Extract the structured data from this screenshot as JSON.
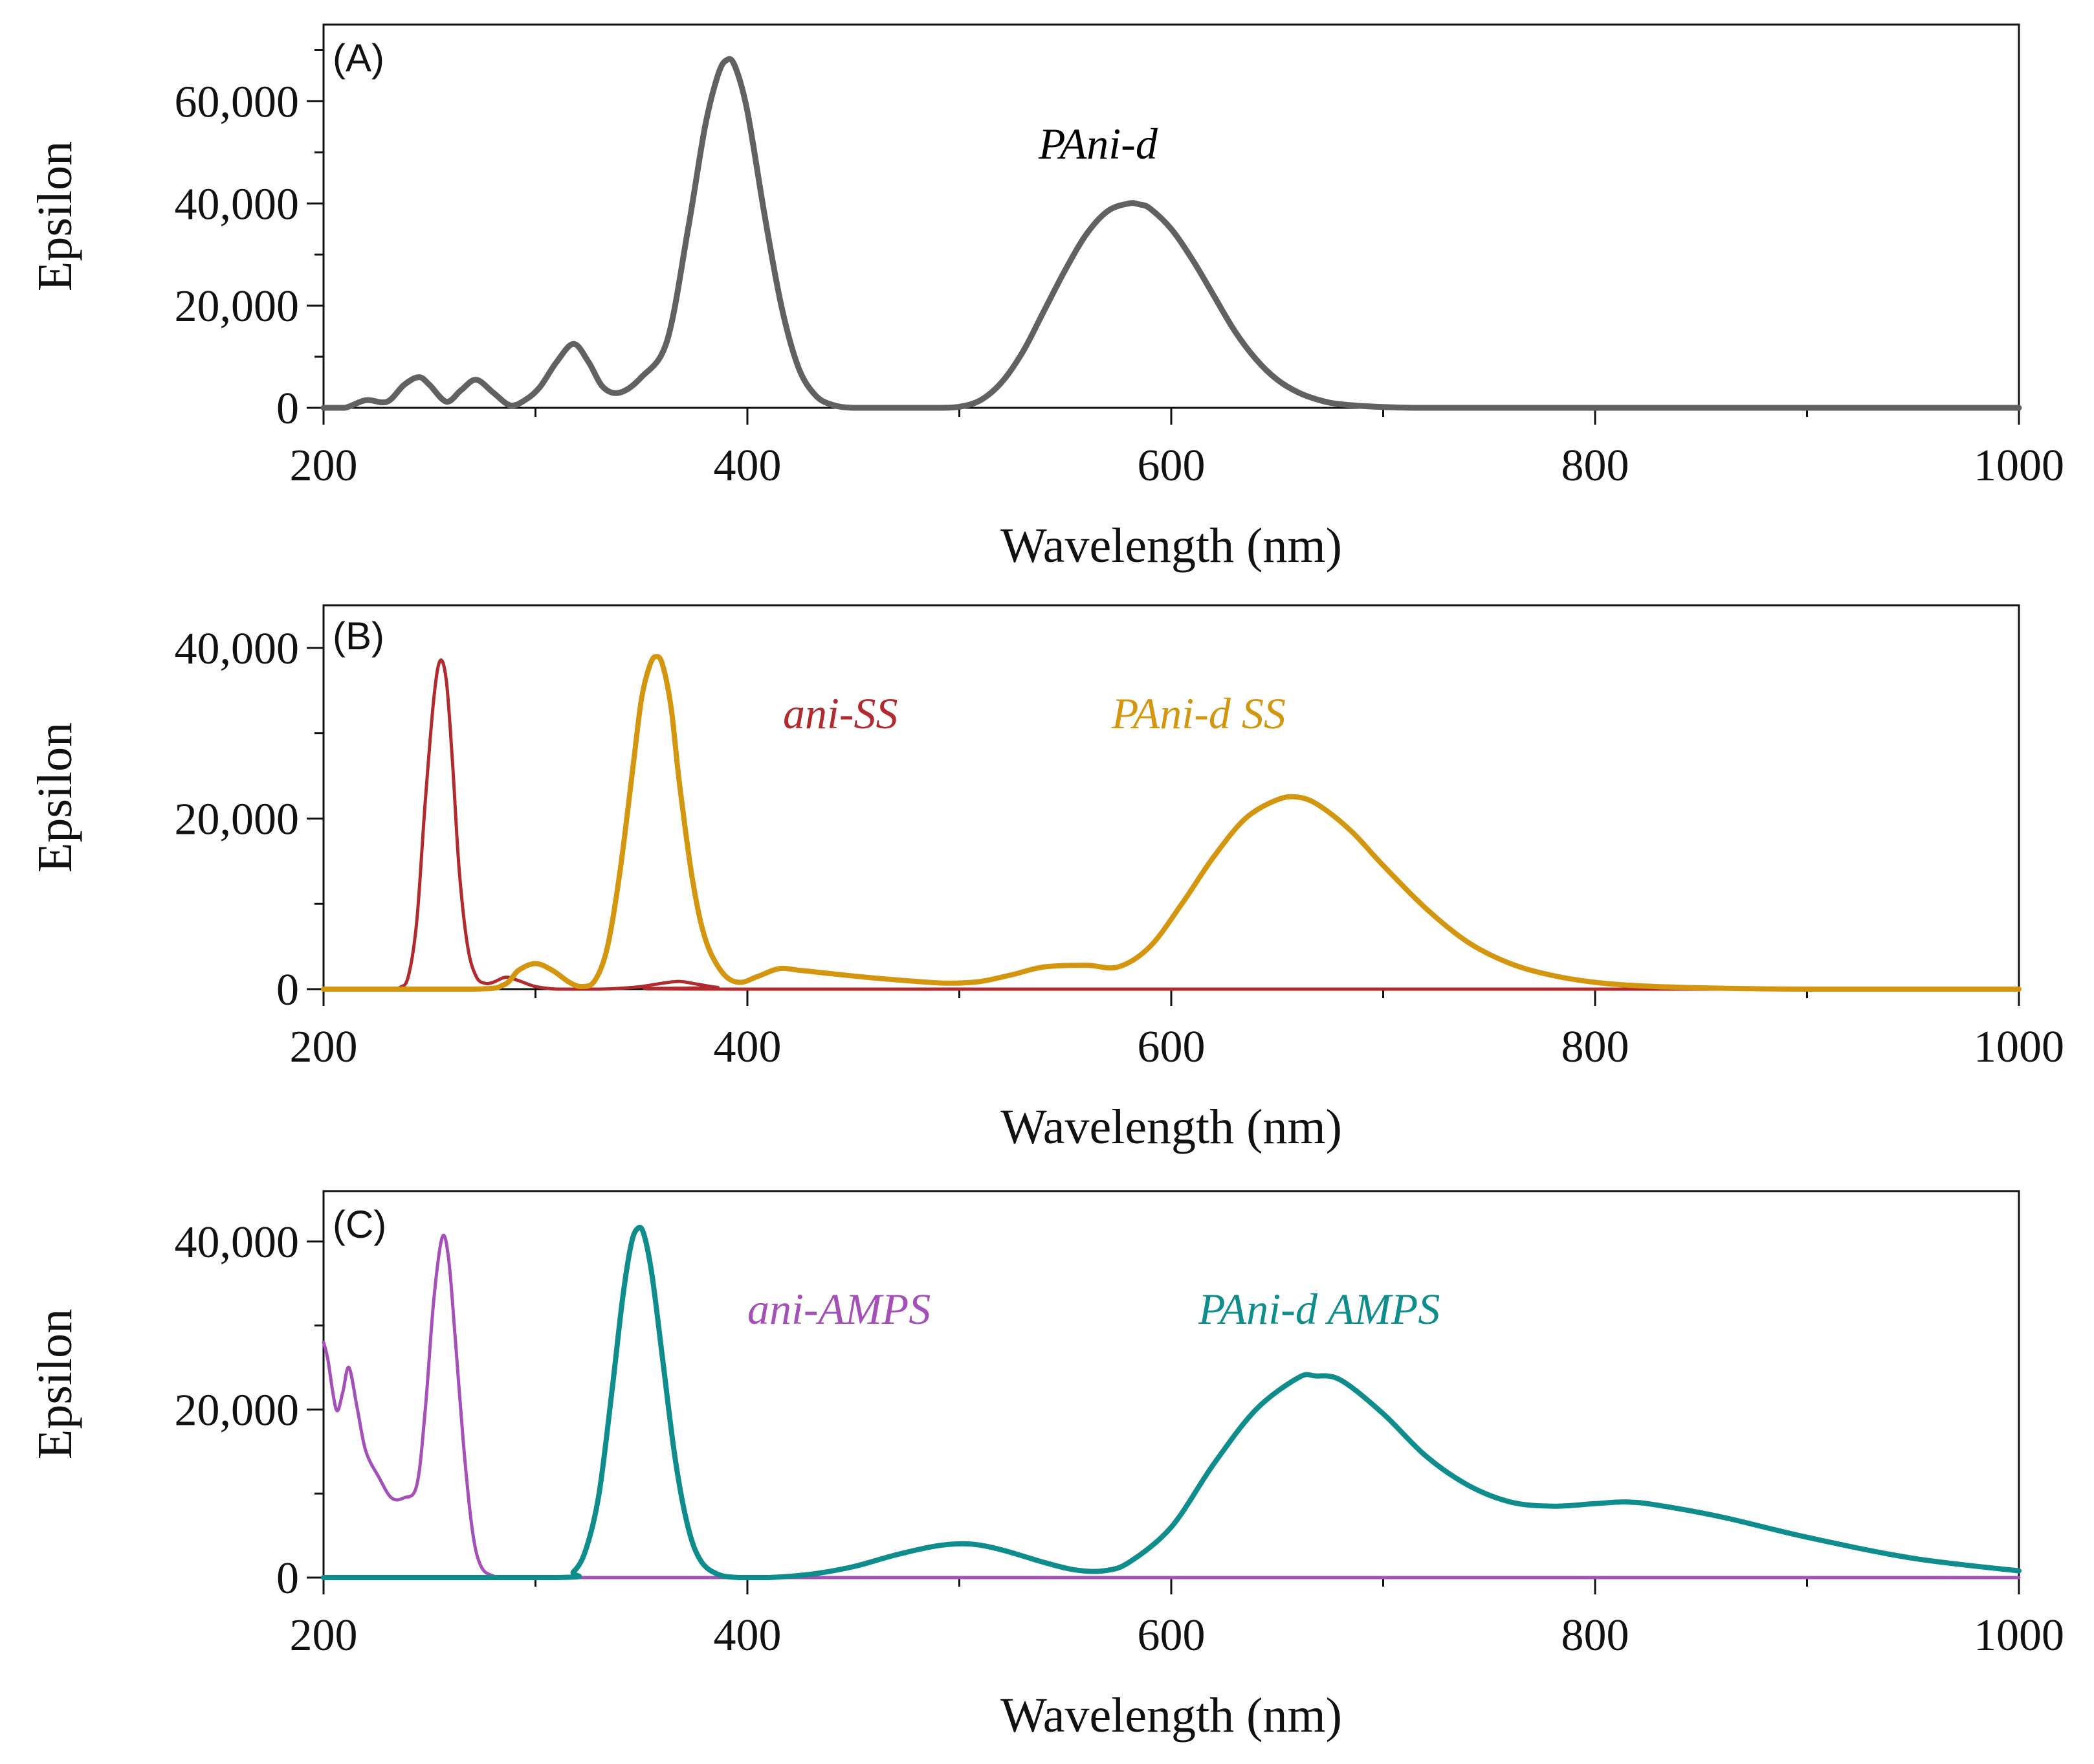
{
  "chart_data": [
    {
      "type": "line",
      "panel_label": "(A)",
      "xlabel": "Wavelength (nm)",
      "ylabel": "Epsilon",
      "xlim": [
        200,
        1000
      ],
      "ylim": [
        0,
        75000
      ],
      "xticks": [
        200,
        400,
        600,
        800,
        1000
      ],
      "xtick_labels": [
        "200",
        "400",
        "600",
        "800",
        "1000"
      ],
      "x_minor_ticks": [
        300,
        500,
        700,
        900
      ],
      "yticks": [
        0,
        20000,
        40000,
        60000
      ],
      "ytick_labels": [
        "0",
        "20,000",
        "40,000",
        "60,000"
      ],
      "y_minor_ticks": [
        10000,
        30000,
        50000,
        70000
      ],
      "series": [
        {
          "name": "PAni-d",
          "color": "#616161",
          "x": [
            200,
            210,
            220,
            230,
            238,
            245,
            250,
            258,
            265,
            272,
            280,
            288,
            295,
            302,
            310,
            318,
            325,
            332,
            340,
            350,
            362,
            372,
            380,
            386,
            390,
            394,
            400,
            408,
            416,
            424,
            432,
            440,
            450,
            470,
            490,
            500,
            510,
            520,
            530,
            540,
            550,
            560,
            570,
            580,
            585,
            590,
            600,
            610,
            620,
            630,
            640,
            650,
            660,
            670,
            680,
            700,
            720,
            760,
            800,
            900,
            1000
          ],
          "values": [
            0,
            0,
            1500,
            1200,
            4500,
            6000,
            4500,
            1200,
            3500,
            5500,
            3000,
            500,
            1500,
            4000,
            9000,
            12500,
            9000,
            4000,
            3000,
            6000,
            13000,
            35000,
            55000,
            65000,
            68000,
            67000,
            58000,
            38000,
            20000,
            8000,
            2500,
            600,
            0,
            0,
            0,
            200,
            1500,
            5000,
            11000,
            19000,
            27000,
            34000,
            38500,
            40000,
            39800,
            39000,
            35000,
            29000,
            22000,
            15000,
            9500,
            5500,
            3000,
            1500,
            700,
            150,
            0,
            0,
            0,
            0,
            0
          ]
        }
      ],
      "annotations": [
        {
          "text": "PAni-d",
          "color": "#111111"
        }
      ]
    },
    {
      "type": "line",
      "panel_label": "(B)",
      "xlabel": "Wavelength (nm)",
      "ylabel": "Epsilon",
      "xlim": [
        200,
        1000
      ],
      "ylim": [
        0,
        45000
      ],
      "xticks": [
        200,
        400,
        600,
        800,
        1000
      ],
      "xtick_labels": [
        "200",
        "400",
        "600",
        "800",
        "1000"
      ],
      "x_minor_ticks": [
        300,
        500,
        700,
        900
      ],
      "yticks": [
        0,
        20000,
        40000
      ],
      "ytick_labels": [
        "0",
        "20,000",
        "40,000"
      ],
      "y_minor_ticks": [
        10000,
        30000
      ],
      "series": [
        {
          "name": "ani-SS",
          "color": "#b02a2e",
          "x": [
            200,
            230,
            236,
            240,
            244,
            248,
            252,
            255,
            258,
            261,
            264,
            268,
            272,
            276,
            280,
            286,
            292,
            300,
            310,
            320,
            330,
            340,
            350,
            360,
            368,
            376,
            386,
            400,
            1000
          ],
          "values": [
            0,
            0,
            200,
            1500,
            8000,
            22000,
            34000,
            38500,
            36000,
            26000,
            14000,
            5000,
            1500,
            700,
            800,
            1400,
            1000,
            300,
            0,
            0,
            0,
            100,
            300,
            700,
            900,
            600,
            200,
            0,
            0
          ]
        },
        {
          "name": "PAni-d SS",
          "color": "#d4960f",
          "x": [
            200,
            270,
            285,
            292,
            300,
            308,
            316,
            322,
            328,
            334,
            340,
            346,
            350,
            354,
            357,
            360,
            364,
            368,
            374,
            380,
            388,
            396,
            405,
            415,
            425,
            440,
            460,
            480,
            495,
            510,
            525,
            540,
            560,
            575,
            590,
            605,
            620,
            635,
            650,
            660,
            670,
            685,
            700,
            720,
            740,
            760,
            780,
            800,
            820,
            850,
            900,
            1000
          ],
          "values": [
            0,
            0,
            500,
            2200,
            3000,
            2200,
            800,
            300,
            1000,
            5000,
            14000,
            26000,
            34000,
            38000,
            39000,
            38000,
            33000,
            24000,
            13000,
            6000,
            2000,
            800,
            1500,
            2400,
            2200,
            1800,
            1300,
            900,
            700,
            900,
            1700,
            2600,
            2800,
            2600,
            5000,
            10000,
            15500,
            20000,
            22200,
            22500,
            21500,
            18500,
            14500,
            9500,
            5500,
            3000,
            1600,
            800,
            400,
            150,
            0,
            0
          ]
        }
      ],
      "annotations": [
        {
          "text": "ani-SS",
          "color": "#b02a2e"
        },
        {
          "text": "PAni-d SS",
          "color": "#d4960f"
        }
      ]
    },
    {
      "type": "line",
      "panel_label": "(C)",
      "xlabel": "Wavelength (nm)",
      "ylabel": "Epsilon",
      "xlim": [
        200,
        1000
      ],
      "ylim": [
        0,
        46000
      ],
      "xticks": [
        200,
        400,
        600,
        800,
        1000
      ],
      "xtick_labels": [
        "200",
        "400",
        "600",
        "800",
        "1000"
      ],
      "x_minor_ticks": [
        300,
        500,
        700,
        900
      ],
      "yticks": [
        0,
        20000,
        40000
      ],
      "ytick_labels": [
        "0",
        "20,000",
        "40,000"
      ],
      "y_minor_ticks": [
        10000,
        30000
      ],
      "series": [
        {
          "name": "ani-AMPS",
          "color": "#a450b8",
          "x": [
            200,
            202,
            206,
            209,
            212,
            216,
            220,
            226,
            232,
            238,
            244,
            248,
            252,
            256,
            259,
            262,
            266,
            270,
            274,
            280,
            290,
            400,
            1000
          ],
          "values": [
            28000,
            26000,
            20000,
            22000,
            25000,
            20000,
            15000,
            12000,
            9500,
            9500,
            11000,
            20000,
            33000,
            40500,
            38000,
            29000,
            16000,
            6000,
            1500,
            200,
            0,
            0,
            0
          ]
        },
        {
          "name": "PAni-d AMPS",
          "color": "#0f8c8c",
          "x": [
            200,
            310,
            318,
            324,
            330,
            336,
            341,
            345,
            348,
            351,
            355,
            360,
            366,
            372,
            378,
            386,
            396,
            410,
            430,
            450,
            470,
            490,
            505,
            520,
            540,
            555,
            568,
            580,
            600,
            620,
            640,
            660,
            668,
            680,
            700,
            720,
            740,
            760,
            780,
            800,
            815,
            830,
            860,
            900,
            950,
            1000
          ],
          "values": [
            0,
            0,
            700,
            3500,
            10000,
            22000,
            33000,
            39500,
            41500,
            41000,
            36000,
            26000,
            14000,
            6000,
            2000,
            400,
            0,
            0,
            400,
            1300,
            2700,
            3800,
            4000,
            3300,
            1800,
            900,
            800,
            1800,
            6000,
            13500,
            20000,
            23800,
            24000,
            23500,
            19500,
            14500,
            11000,
            9000,
            8500,
            8800,
            9000,
            8600,
            7200,
            4800,
            2300,
            800
          ]
        }
      ],
      "annotations": [
        {
          "text": "ani-AMPS",
          "color": "#a450b8"
        },
        {
          "text": "PAni-d AMPS",
          "color": "#0f8c8c"
        }
      ]
    }
  ]
}
